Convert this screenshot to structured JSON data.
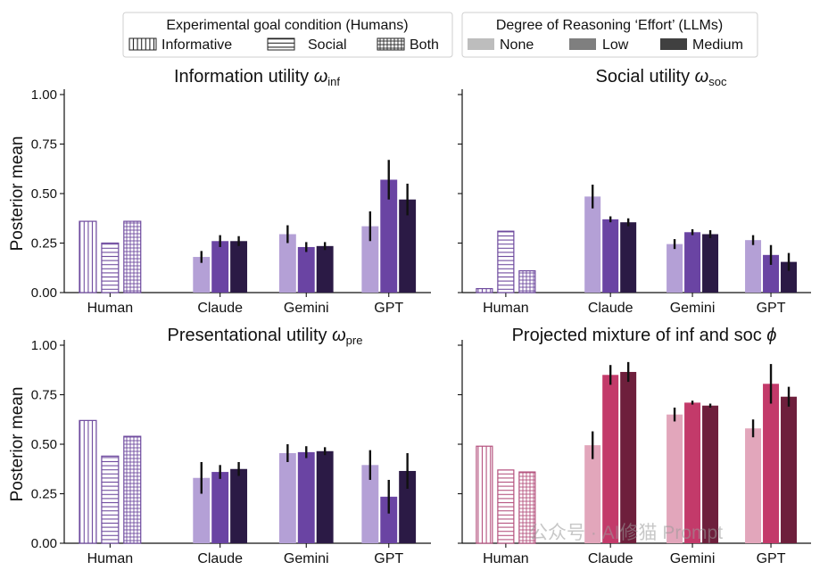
{
  "chart_data": {
    "type": "bar",
    "legends": {
      "humans": {
        "title": "Experimental goal condition (Humans)",
        "entries": [
          {
            "label": "Informative",
            "pattern": "vertical-lines"
          },
          {
            "label": "Social",
            "pattern": "horizontal-lines"
          },
          {
            "label": "Both",
            "pattern": "grid"
          }
        ]
      },
      "llms": {
        "title": "Degree of Reasoning ‘Effort’ (LLMs)",
        "entries": [
          {
            "label": "None",
            "color": "#bdbdbd"
          },
          {
            "label": "Low",
            "color": "#7f7f7f"
          },
          {
            "label": "Medium",
            "color": "#404040"
          }
        ]
      }
    },
    "categories": [
      "Human",
      "Claude",
      "Gemini",
      "GPT"
    ],
    "ylabel": "Posterior mean",
    "ylim": [
      0,
      1
    ],
    "yticks": [
      "0.00",
      "0.25",
      "0.50",
      "0.75",
      "1.00"
    ],
    "subplots": [
      {
        "title": "Information utility",
        "symbol": "ω",
        "subscript": "inf",
        "palette": "purple",
        "human": [
          0.36,
          0.25,
          0.36
        ],
        "models": {
          "Claude": {
            "values": [
              0.18,
              0.26,
              0.26
            ],
            "errors": [
              0.03,
              0.03,
              0.025
            ]
          },
          "Gemini": {
            "values": [
              0.295,
              0.23,
              0.235
            ],
            "errors": [
              0.045,
              0.025,
              0.02
            ]
          },
          "GPT": {
            "values": [
              0.335,
              0.57,
              0.47
            ],
            "errors": [
              0.075,
              0.1,
              0.08
            ]
          }
        }
      },
      {
        "title": "Social utility",
        "symbol": "ω",
        "subscript": "soc",
        "palette": "purple",
        "human": [
          0.02,
          0.31,
          0.11
        ],
        "models": {
          "Claude": {
            "values": [
              0.485,
              0.37,
              0.355
            ],
            "errors": [
              0.06,
              0.015,
              0.02
            ]
          },
          "Gemini": {
            "values": [
              0.245,
              0.305,
              0.295
            ],
            "errors": [
              0.025,
              0.015,
              0.02
            ]
          },
          "GPT": {
            "values": [
              0.265,
              0.19,
              0.155
            ],
            "errors": [
              0.025,
              0.05,
              0.045
            ]
          }
        }
      },
      {
        "title": "Presentational utility",
        "symbol": "ω",
        "subscript": "pre",
        "palette": "purple",
        "human": [
          0.62,
          0.44,
          0.54
        ],
        "models": {
          "Claude": {
            "values": [
              0.33,
              0.36,
              0.375
            ],
            "errors": [
              0.08,
              0.035,
              0.035
            ]
          },
          "Gemini": {
            "values": [
              0.455,
              0.46,
              0.465
            ],
            "errors": [
              0.045,
              0.03,
              0.02
            ]
          },
          "GPT": {
            "values": [
              0.395,
              0.235,
              0.365
            ],
            "errors": [
              0.075,
              0.085,
              0.09
            ]
          }
        }
      },
      {
        "title": "Projected mixture of inf and soc",
        "symbol": "ϕ",
        "subscript": "",
        "palette": "pink",
        "human": [
          0.49,
          0.37,
          0.36
        ],
        "models": {
          "Claude": {
            "values": [
              0.495,
              0.85,
              0.865
            ],
            "errors": [
              0.07,
              0.05,
              0.05
            ]
          },
          "Gemini": {
            "values": [
              0.65,
              0.71,
              0.695
            ],
            "errors": [
              0.035,
              0.01,
              0.01
            ]
          },
          "GPT": {
            "values": [
              0.58,
              0.805,
              0.74
            ],
            "errors": [
              0.045,
              0.1,
              0.05
            ]
          }
        }
      }
    ],
    "colors": {
      "purple": {
        "human_edge": "#6e4a9e",
        "effort": [
          "#b4a0d6",
          "#6a44a3",
          "#2b1a45"
        ]
      },
      "pink": {
        "human_edge": "#b5527e",
        "effort": [
          "#e2a6bb",
          "#c33a6a",
          "#6e1f3c"
        ]
      }
    }
  },
  "watermark": "公众号 · AI修猫 Prompt"
}
